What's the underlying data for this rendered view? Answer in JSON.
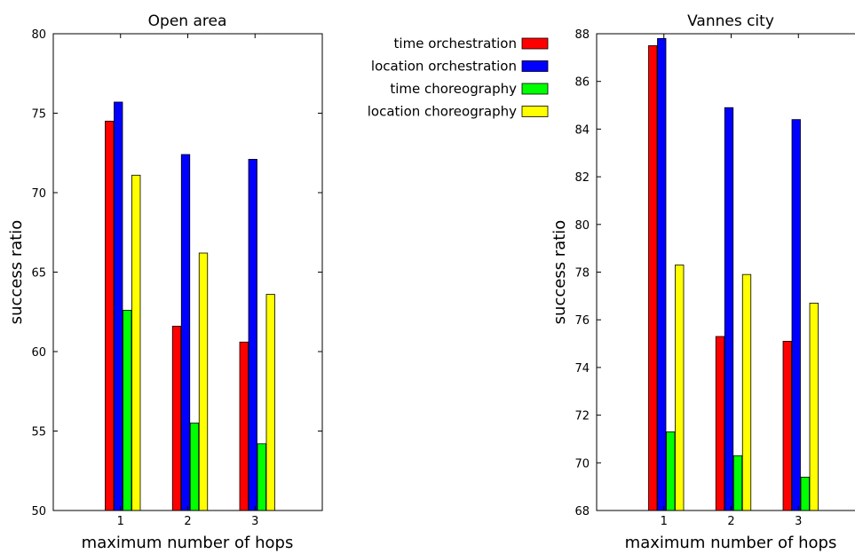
{
  "legend": {
    "entries": [
      {
        "label": "time orchestration",
        "color": "#ff0000"
      },
      {
        "label": "location orchestration",
        "color": "#0000ff"
      },
      {
        "label": "time choreography",
        "color": "#00ff00"
      },
      {
        "label": "location choreography",
        "color": "#ffff00"
      }
    ]
  },
  "chart_data": [
    {
      "type": "bar",
      "title": "Open area",
      "xlabel": "maximum number of hops",
      "ylabel": "success ratio",
      "categories": [
        "1",
        "2",
        "3"
      ],
      "ylim": [
        50,
        80
      ],
      "yticks": [
        50,
        55,
        60,
        65,
        70,
        75,
        80
      ],
      "series": [
        {
          "name": "time orchestration",
          "color": "#ff0000",
          "values": [
            74.5,
            61.6,
            60.6
          ]
        },
        {
          "name": "location orchestration",
          "color": "#0000ff",
          "values": [
            75.7,
            72.4,
            72.1
          ]
        },
        {
          "name": "time choreography",
          "color": "#00ff00",
          "values": [
            62.6,
            55.5,
            54.2
          ]
        },
        {
          "name": "location choreography",
          "color": "#ffff00",
          "values": [
            71.1,
            66.2,
            63.6
          ]
        }
      ]
    },
    {
      "type": "bar",
      "title": "Vannes city",
      "xlabel": "maximum number of hops",
      "ylabel": "success ratio",
      "categories": [
        "1",
        "2",
        "3"
      ],
      "ylim": [
        68,
        88
      ],
      "yticks": [
        68,
        70,
        72,
        74,
        76,
        78,
        80,
        82,
        84,
        86,
        88
      ],
      "series": [
        {
          "name": "time orchestration",
          "color": "#ff0000",
          "values": [
            87.5,
            75.3,
            75.1
          ]
        },
        {
          "name": "location orchestration",
          "color": "#0000ff",
          "values": [
            87.8,
            84.9,
            84.4
          ]
        },
        {
          "name": "time choreography",
          "color": "#00ff00",
          "values": [
            71.3,
            70.3,
            69.4
          ]
        },
        {
          "name": "location choreography",
          "color": "#ffff00",
          "values": [
            78.3,
            77.9,
            76.7
          ]
        }
      ]
    }
  ]
}
